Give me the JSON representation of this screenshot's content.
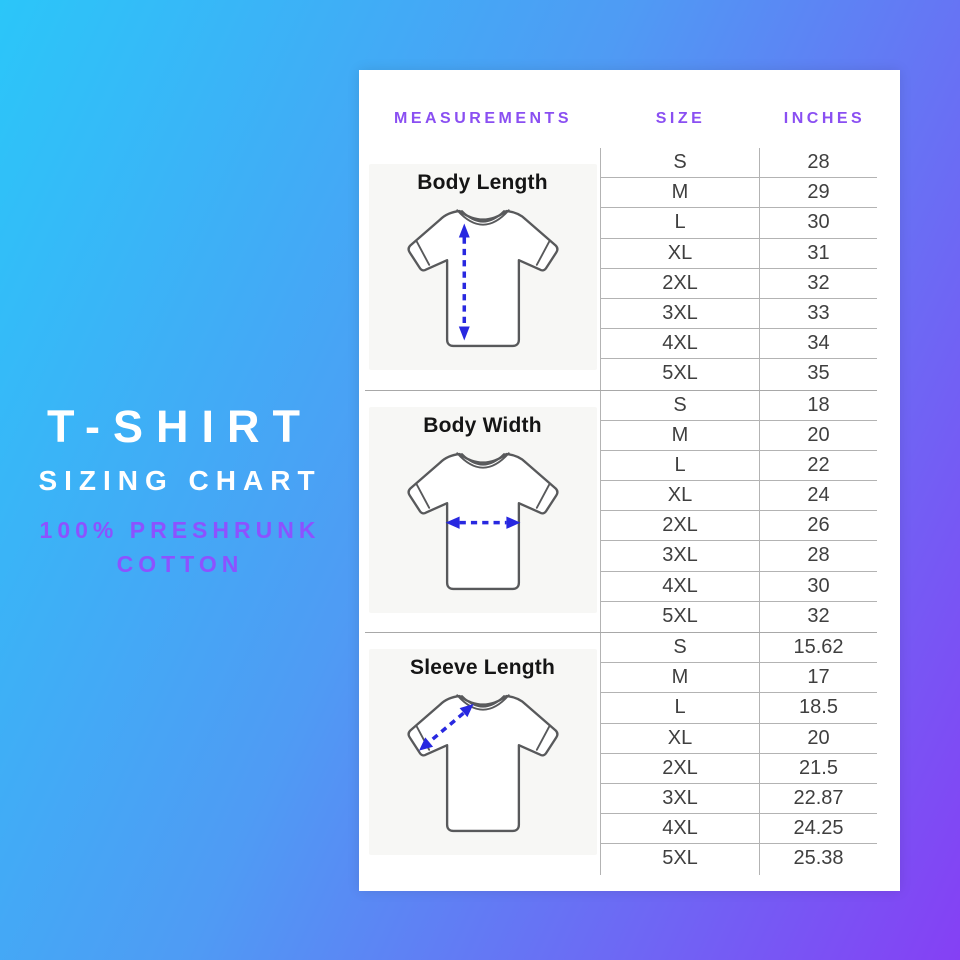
{
  "left_panel": {
    "title": "T-SHIRT",
    "subtitle": "SIZING CHART",
    "tagline_line1": "100% PRESHRUNK",
    "tagline_line2": "COTTON"
  },
  "chart_data": {
    "type": "table",
    "title": "T-SHIRT SIZING CHART",
    "subtitle": "100% PRESHRUNK COTTON",
    "columns": [
      "MEASUREMENTS",
      "SIZE",
      "INCHES"
    ],
    "sections": [
      {
        "measurement": "Body Length",
        "illustration": "tshirt-vertical-arrow",
        "rows": [
          [
            "S",
            "28"
          ],
          [
            "M",
            "29"
          ],
          [
            "L",
            "30"
          ],
          [
            "XL",
            "31"
          ],
          [
            "2XL",
            "32"
          ],
          [
            "3XL",
            "33"
          ],
          [
            "4XL",
            "34"
          ],
          [
            "5XL",
            "35"
          ]
        ]
      },
      {
        "measurement": "Body Width",
        "illustration": "tshirt-horizontal-arrow",
        "rows": [
          [
            "S",
            "18"
          ],
          [
            "M",
            "20"
          ],
          [
            "L",
            "22"
          ],
          [
            "XL",
            "24"
          ],
          [
            "2XL",
            "26"
          ],
          [
            "3XL",
            "28"
          ],
          [
            "4XL",
            "30"
          ],
          [
            "5XL",
            "32"
          ]
        ]
      },
      {
        "measurement": "Sleeve Length",
        "illustration": "tshirt-diagonal-arrow",
        "rows": [
          [
            "S",
            "15.62"
          ],
          [
            "M",
            "17"
          ],
          [
            "L",
            "18.5"
          ],
          [
            "XL",
            "20"
          ],
          [
            "2XL",
            "21.5"
          ],
          [
            "3XL",
            "22.87"
          ],
          [
            "4XL",
            "24.25"
          ],
          [
            "5XL",
            "25.38"
          ]
        ]
      }
    ]
  },
  "colors": {
    "background_gradient_start": "#2bc6f9",
    "background_gradient_end": "#8540f4",
    "accent_purple": "#8c52ff",
    "header_purple": "#8a4ff2",
    "table_line": "#b3b3b3",
    "cell_text": "#3f3f3f",
    "arrow_blue": "#2828e0",
    "card_background": "#ffffff"
  }
}
